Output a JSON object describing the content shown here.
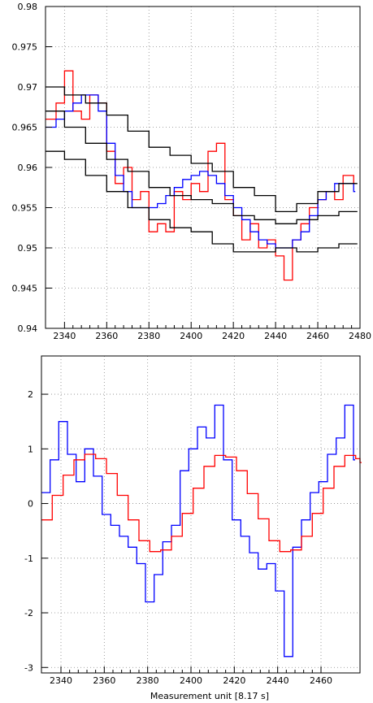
{
  "chart_data": [
    {
      "type": "line",
      "xlabel": "",
      "ylabel": "",
      "xlim": [
        2331,
        2480
      ],
      "ylim": [
        0.94,
        0.98
      ],
      "grid": true,
      "x_ticks": [
        2340,
        2360,
        2380,
        2400,
        2420,
        2440,
        2460,
        2480
      ],
      "x_tick_labels": [
        "2340",
        "2360",
        "2380",
        "2400",
        "2420",
        "2440",
        "2460",
        "2480"
      ],
      "y_ticks": [
        0.94,
        0.945,
        0.95,
        0.955,
        0.96,
        0.965,
        0.97,
        0.975,
        0.98
      ],
      "y_tick_labels": [
        "0.94",
        "0.945",
        "0.95",
        "0.955",
        "0.96",
        "0.965",
        "0.97",
        "0.975",
        "0.98"
      ],
      "series": [
        {
          "color": "#ff0000",
          "style": "step",
          "x": [
            2331,
            2336,
            2340,
            2344,
            2348,
            2352,
            2356,
            2360,
            2364,
            2368,
            2372,
            2376,
            2380,
            2384,
            2388,
            2392,
            2396,
            2400,
            2404,
            2408,
            2412,
            2416,
            2420,
            2424,
            2428,
            2432,
            2436,
            2440,
            2444,
            2448,
            2452,
            2456,
            2460,
            2464,
            2468,
            2472,
            2477
          ],
          "y": [
            0.966,
            0.968,
            0.972,
            0.967,
            0.966,
            0.969,
            0.968,
            0.962,
            0.958,
            0.96,
            0.956,
            0.957,
            0.952,
            0.953,
            0.952,
            0.957,
            0.956,
            0.958,
            0.957,
            0.962,
            0.963,
            0.956,
            0.954,
            0.951,
            0.953,
            0.95,
            0.951,
            0.949,
            0.946,
            0.951,
            0.953,
            0.955,
            0.956,
            0.957,
            0.956,
            0.959,
            0.958
          ]
        },
        {
          "color": "#0000ff",
          "style": "step",
          "x": [
            2331,
            2336,
            2340,
            2344,
            2348,
            2352,
            2356,
            2360,
            2364,
            2368,
            2372,
            2376,
            2380,
            2384,
            2388,
            2392,
            2396,
            2400,
            2404,
            2408,
            2412,
            2416,
            2420,
            2424,
            2428,
            2432,
            2436,
            2440,
            2444,
            2448,
            2452,
            2456,
            2460,
            2464,
            2468,
            2472,
            2477
          ],
          "y": [
            0.965,
            0.966,
            0.967,
            0.968,
            0.969,
            0.969,
            0.967,
            0.963,
            0.959,
            0.957,
            0.955,
            0.955,
            0.955,
            0.9555,
            0.9565,
            0.9575,
            0.9585,
            0.959,
            0.9595,
            0.959,
            0.958,
            0.9565,
            0.955,
            0.9535,
            0.952,
            0.951,
            0.9505,
            0.95,
            0.95,
            0.951,
            0.952,
            0.954,
            0.956,
            0.957,
            0.958,
            0.958,
            0.957
          ]
        },
        {
          "color": "#000000",
          "style": "step",
          "x": [
            2331,
            2340,
            2350,
            2360,
            2370,
            2380,
            2390,
            2400,
            2410,
            2420,
            2430,
            2440,
            2450,
            2460,
            2470,
            2478
          ],
          "y": [
            0.97,
            0.969,
            0.968,
            0.9665,
            0.9645,
            0.9625,
            0.9615,
            0.9605,
            0.9595,
            0.9575,
            0.9565,
            0.9545,
            0.9555,
            0.957,
            0.958,
            0.958
          ]
        },
        {
          "color": "#000000",
          "style": "step",
          "x": [
            2331,
            2340,
            2350,
            2360,
            2370,
            2380,
            2390,
            2400,
            2410,
            2420,
            2430,
            2440,
            2450,
            2460,
            2470,
            2478
          ],
          "y": [
            0.967,
            0.965,
            0.963,
            0.961,
            0.9595,
            0.9575,
            0.9565,
            0.956,
            0.9555,
            0.954,
            0.9535,
            0.953,
            0.9535,
            0.954,
            0.9545,
            0.9545
          ]
        },
        {
          "color": "#000000",
          "style": "step",
          "x": [
            2331,
            2340,
            2350,
            2360,
            2370,
            2380,
            2390,
            2400,
            2410,
            2420,
            2430,
            2440,
            2450,
            2460,
            2470,
            2478
          ],
          "y": [
            0.962,
            0.961,
            0.959,
            0.957,
            0.955,
            0.9535,
            0.9525,
            0.952,
            0.9505,
            0.9495,
            0.9495,
            0.95,
            0.9495,
            0.95,
            0.9505,
            0.9505
          ]
        }
      ]
    },
    {
      "type": "line",
      "xlabel": "Measurement unit [8.17 s]",
      "ylabel": "",
      "xlim": [
        2331,
        2478
      ],
      "ylim": [
        -3.1,
        2.7
      ],
      "grid": true,
      "x_ticks": [
        2340,
        2360,
        2380,
        2400,
        2420,
        2440,
        2460
      ],
      "x_tick_labels": [
        "2340",
        "2360",
        "2380",
        "2400",
        "2420",
        "2440",
        "2460"
      ],
      "y_ticks": [
        -3,
        -2,
        -1,
        0,
        1,
        2
      ],
      "y_tick_labels": [
        "-3",
        "-2",
        "-1",
        "0",
        "1",
        "2"
      ],
      "series": [
        {
          "color": "#0000ff",
          "style": "step",
          "x": [
            2331,
            2335,
            2339,
            2343,
            2347,
            2351,
            2355,
            2359,
            2363,
            2367,
            2371,
            2375,
            2379,
            2383,
            2387,
            2391,
            2395,
            2399,
            2403,
            2407,
            2411,
            2415,
            2419,
            2423,
            2427,
            2431,
            2435,
            2439,
            2443,
            2447,
            2451,
            2455,
            2459,
            2463,
            2467,
            2471,
            2475
          ],
          "y": [
            0.2,
            0.8,
            1.5,
            0.9,
            0.4,
            1.0,
            0.5,
            -0.2,
            -0.4,
            -0.6,
            -0.8,
            -1.1,
            -1.8,
            -1.3,
            -0.7,
            -0.4,
            0.6,
            1.0,
            1.4,
            1.2,
            1.8,
            0.8,
            -0.3,
            -0.6,
            -0.9,
            -1.2,
            -1.1,
            -1.6,
            -2.8,
            -0.8,
            -0.3,
            0.2,
            0.4,
            0.9,
            1.2,
            1.8,
            0.8
          ]
        },
        {
          "color": "#ff0000",
          "style": "step",
          "kind": "sine",
          "x": [
            2331,
            2336,
            2341,
            2346,
            2351,
            2356,
            2361,
            2366,
            2371,
            2376,
            2381,
            2386,
            2391,
            2396,
            2401,
            2406,
            2411,
            2416,
            2421,
            2426,
            2431,
            2436,
            2441,
            2446,
            2451,
            2456,
            2461,
            2466,
            2471,
            2476,
            2478
          ],
          "y": [
            -0.3,
            0.15,
            0.52,
            0.8,
            0.9,
            0.82,
            0.55,
            0.15,
            -0.3,
            -0.68,
            -0.88,
            -0.85,
            -0.6,
            -0.18,
            0.28,
            0.68,
            0.88,
            0.85,
            0.6,
            0.18,
            -0.28,
            -0.68,
            -0.88,
            -0.85,
            -0.6,
            -0.18,
            0.28,
            0.68,
            0.88,
            0.82,
            0.75
          ]
        }
      ]
    }
  ]
}
